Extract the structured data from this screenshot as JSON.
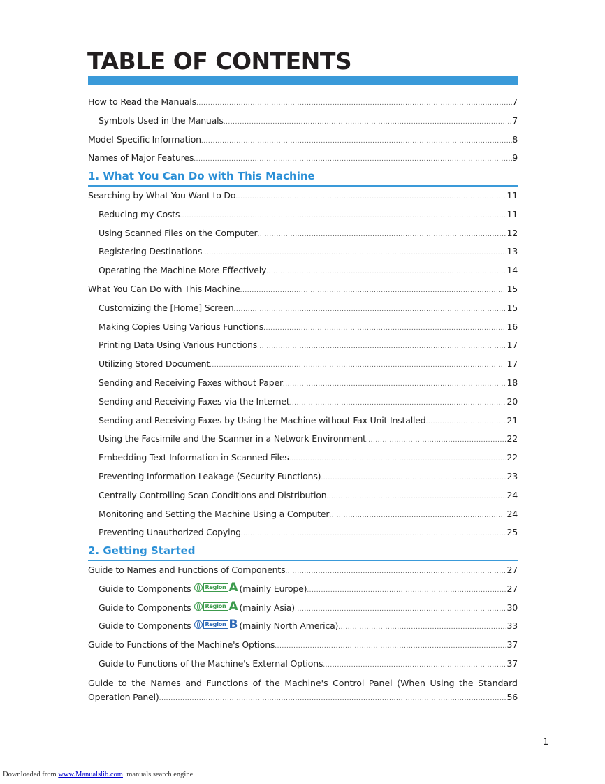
{
  "title": "TABLE OF CONTENTS",
  "entries": [
    {
      "level": 1,
      "text": "How to Read the Manuals",
      "page": "7"
    },
    {
      "level": 2,
      "text": "Symbols Used in the Manuals",
      "page": "7"
    },
    {
      "level": 1,
      "text": "Model-Specific Information",
      "page": "8"
    },
    {
      "level": 1,
      "text": "Names of Major Features",
      "page": "9"
    },
    {
      "level": 0,
      "text": "1. What You Can Do with This Machine"
    },
    {
      "level": 1,
      "text": "Searching by What You Want to Do",
      "page": "11"
    },
    {
      "level": 2,
      "text": "Reducing my Costs",
      "page": "11"
    },
    {
      "level": 2,
      "text": "Using Scanned Files on the Computer",
      "page": "12"
    },
    {
      "level": 2,
      "text": "Registering Destinations",
      "page": "13"
    },
    {
      "level": 2,
      "text": "Operating the Machine More Effectively",
      "page": "14"
    },
    {
      "level": 1,
      "text": "What You Can Do with This Machine",
      "page": "15"
    },
    {
      "level": 2,
      "text": "Customizing the [Home] Screen",
      "page": "15"
    },
    {
      "level": 2,
      "text": "Making Copies Using Various Functions",
      "page": "16"
    },
    {
      "level": 2,
      "text": "Printing Data Using Various Functions",
      "page": "17"
    },
    {
      "level": 2,
      "text": "Utilizing Stored Document",
      "page": "17"
    },
    {
      "level": 2,
      "text": "Sending and Receiving Faxes without Paper",
      "page": "18"
    },
    {
      "level": 2,
      "text": "Sending and Receiving Faxes via the Internet",
      "page": "20"
    },
    {
      "level": 2,
      "text": "Sending and Receiving Faxes by Using the Machine without Fax Unit Installed",
      "page": "21"
    },
    {
      "level": 2,
      "text": "Using the Facsimile and the Scanner in a Network Environment",
      "page": "22"
    },
    {
      "level": 2,
      "text": "Embedding Text Information in Scanned Files",
      "page": "22"
    },
    {
      "level": 2,
      "text": "Preventing Information Leakage (Security Functions)",
      "page": "23"
    },
    {
      "level": 2,
      "text": "Centrally Controlling Scan Conditions and Distribution",
      "page": "24"
    },
    {
      "level": 2,
      "text": "Monitoring and Setting the Machine Using a Computer",
      "page": "24"
    },
    {
      "level": 2,
      "text": "Preventing Unauthorized Copying",
      "page": "25"
    },
    {
      "level": 0,
      "text": "2. Getting Started"
    },
    {
      "level": 1,
      "text": "Guide to Names and Functions of Components",
      "page": "27"
    },
    {
      "level": 2,
      "text": "Guide to Components",
      "region": "A",
      "suffix": "(mainly Europe)",
      "page": "27"
    },
    {
      "level": 2,
      "text": "Guide to Components",
      "region": "A",
      "suffix": "(mainly Asia)",
      "page": "30"
    },
    {
      "level": 2,
      "text": "Guide to Components",
      "region": "B",
      "suffix": "(mainly North America)",
      "page": "33"
    },
    {
      "level": 1,
      "text": "Guide to Functions of the Machine's Options",
      "page": "37"
    },
    {
      "level": 2,
      "text": "Guide to Functions of the Machine's External Options",
      "page": "37"
    }
  ],
  "wrapped_entry": {
    "line1": "Guide to the Names and Functions of the Machine's Control Panel (When Using the Standard",
    "line2": "Operation Panel)",
    "page": "56"
  },
  "region_label": "Region",
  "region_colors": {
    "A": "#3c9a4c",
    "B": "#2b67b5"
  },
  "page_number": "1",
  "footer": {
    "prefix": "Downloaded from ",
    "link": "www.Manualslib.com",
    "suffix": "  manuals search engine"
  }
}
